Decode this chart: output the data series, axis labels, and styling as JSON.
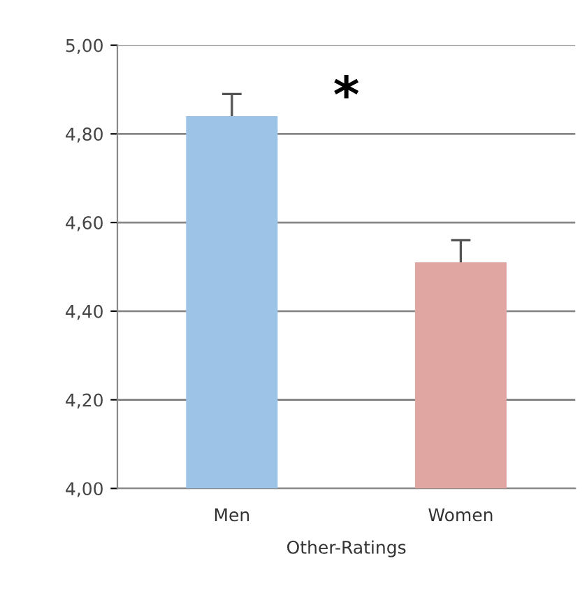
{
  "chart_data": {
    "type": "bar",
    "categories": [
      "Men",
      "Women"
    ],
    "xlabel": "Other-Ratings",
    "values": [
      4.84,
      4.51
    ],
    "colors": [
      "#9dc3e6",
      "#e0a7a2"
    ],
    "errors": [
      0.05,
      0.05
    ],
    "ylim": [
      4.0,
      5.0
    ],
    "yticks": [
      {
        "value": 4.0,
        "label": "4,00"
      },
      {
        "value": 4.2,
        "label": "4,20"
      },
      {
        "value": 4.4,
        "label": "4,40"
      },
      {
        "value": 4.6,
        "label": "4,60"
      },
      {
        "value": 4.8,
        "label": "4,80"
      },
      {
        "value": 5.0,
        "label": "5,00"
      }
    ],
    "grid": "y",
    "annotations": [
      "*"
    ]
  }
}
